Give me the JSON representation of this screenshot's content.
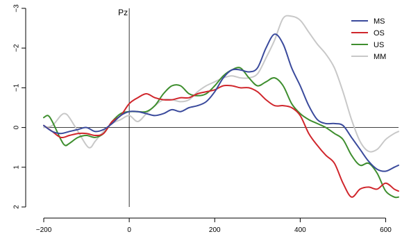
{
  "chart_data": {
    "type": "line",
    "title": "",
    "xlabel": "",
    "ylabel": "",
    "channel_label": "Pz",
    "xlim": [
      -200,
      630
    ],
    "ylim": [
      2,
      -3
    ],
    "x_ticks": [
      -200,
      0,
      200,
      400,
      600
    ],
    "y_ticks": [
      -3,
      -2,
      -1,
      0,
      1,
      2
    ],
    "reference_lines": {
      "x": 0,
      "y": 0
    },
    "legend_position": "top-right",
    "series": [
      {
        "name": "MS",
        "color": "#3a4a9c",
        "points": [
          [
            -200,
            -0.05
          ],
          [
            -180,
            0.1
          ],
          [
            -160,
            0.15
          ],
          [
            -140,
            0.1
          ],
          [
            -120,
            0.05
          ],
          [
            -100,
            0
          ],
          [
            -80,
            0.1
          ],
          [
            -60,
            0.05
          ],
          [
            -40,
            -0.1
          ],
          [
            -20,
            -0.3
          ],
          [
            0,
            -0.4
          ],
          [
            20,
            -0.4
          ],
          [
            40,
            -0.35
          ],
          [
            60,
            -0.3
          ],
          [
            80,
            -0.35
          ],
          [
            100,
            -0.45
          ],
          [
            120,
            -0.4
          ],
          [
            140,
            -0.5
          ],
          [
            160,
            -0.55
          ],
          [
            180,
            -0.65
          ],
          [
            200,
            -0.9
          ],
          [
            220,
            -1.25
          ],
          [
            240,
            -1.45
          ],
          [
            260,
            -1.45
          ],
          [
            280,
            -1.4
          ],
          [
            300,
            -1.5
          ],
          [
            320,
            -2.0
          ],
          [
            340,
            -2.35
          ],
          [
            360,
            -2.1
          ],
          [
            380,
            -1.5
          ],
          [
            400,
            -1.05
          ],
          [
            420,
            -0.55
          ],
          [
            440,
            -0.2
          ],
          [
            460,
            -0.1
          ],
          [
            480,
            -0.1
          ],
          [
            500,
            -0.05
          ],
          [
            520,
            0.25
          ],
          [
            540,
            0.55
          ],
          [
            560,
            0.85
          ],
          [
            580,
            1.05
          ],
          [
            600,
            1.1
          ],
          [
            620,
            1.0
          ],
          [
            630,
            0.95
          ]
        ]
      },
      {
        "name": "OS",
        "color": "#d0262c",
        "points": [
          [
            -200,
            -0.05
          ],
          [
            -180,
            0.1
          ],
          [
            -160,
            0.25
          ],
          [
            -140,
            0.2
          ],
          [
            -120,
            0.15
          ],
          [
            -100,
            0.15
          ],
          [
            -80,
            0.2
          ],
          [
            -60,
            0.15
          ],
          [
            -40,
            -0.15
          ],
          [
            -20,
            -0.3
          ],
          [
            0,
            -0.6
          ],
          [
            20,
            -0.75
          ],
          [
            40,
            -0.85
          ],
          [
            60,
            -0.75
          ],
          [
            80,
            -0.7
          ],
          [
            100,
            -0.7
          ],
          [
            120,
            -0.75
          ],
          [
            140,
            -0.75
          ],
          [
            160,
            -0.85
          ],
          [
            180,
            -0.9
          ],
          [
            200,
            -0.95
          ],
          [
            220,
            -1.05
          ],
          [
            240,
            -1.05
          ],
          [
            260,
            -1.0
          ],
          [
            280,
            -1.0
          ],
          [
            300,
            -0.9
          ],
          [
            320,
            -0.7
          ],
          [
            340,
            -0.55
          ],
          [
            360,
            -0.55
          ],
          [
            380,
            -0.5
          ],
          [
            400,
            -0.3
          ],
          [
            420,
            0.15
          ],
          [
            440,
            0.45
          ],
          [
            460,
            0.7
          ],
          [
            480,
            0.9
          ],
          [
            500,
            1.4
          ],
          [
            520,
            1.75
          ],
          [
            540,
            1.55
          ],
          [
            560,
            1.5
          ],
          [
            580,
            1.55
          ],
          [
            600,
            1.4
          ],
          [
            620,
            1.55
          ],
          [
            630,
            1.6
          ]
        ]
      },
      {
        "name": "US",
        "color": "#3e8e2e",
        "points": [
          [
            -200,
            -0.25
          ],
          [
            -190,
            -0.3
          ],
          [
            -180,
            -0.15
          ],
          [
            -160,
            0.3
          ],
          [
            -150,
            0.45
          ],
          [
            -140,
            0.4
          ],
          [
            -120,
            0.25
          ],
          [
            -100,
            0.2
          ],
          [
            -80,
            0.25
          ],
          [
            -60,
            0.15
          ],
          [
            -40,
            -0.15
          ],
          [
            -20,
            -0.35
          ],
          [
            0,
            -0.4
          ],
          [
            20,
            -0.4
          ],
          [
            40,
            -0.4
          ],
          [
            60,
            -0.55
          ],
          [
            80,
            -0.85
          ],
          [
            100,
            -1.05
          ],
          [
            120,
            -1.05
          ],
          [
            140,
            -0.85
          ],
          [
            160,
            -0.8
          ],
          [
            180,
            -0.85
          ],
          [
            200,
            -1.05
          ],
          [
            220,
            -1.3
          ],
          [
            240,
            -1.45
          ],
          [
            260,
            -1.5
          ],
          [
            280,
            -1.25
          ],
          [
            300,
            -1.05
          ],
          [
            320,
            -1.15
          ],
          [
            340,
            -1.25
          ],
          [
            360,
            -1.05
          ],
          [
            380,
            -0.6
          ],
          [
            400,
            -0.35
          ],
          [
            420,
            -0.2
          ],
          [
            440,
            -0.1
          ],
          [
            460,
            0.0
          ],
          [
            480,
            0.15
          ],
          [
            500,
            0.3
          ],
          [
            520,
            0.7
          ],
          [
            540,
            0.95
          ],
          [
            560,
            0.9
          ],
          [
            580,
            1.15
          ],
          [
            600,
            1.6
          ],
          [
            620,
            1.75
          ],
          [
            630,
            1.75
          ]
        ]
      },
      {
        "name": "MM",
        "color": "#c8c8c8",
        "points": [
          [
            -200,
            0.0
          ],
          [
            -180,
            -0.05
          ],
          [
            -160,
            -0.3
          ],
          [
            -150,
            -0.35
          ],
          [
            -140,
            -0.25
          ],
          [
            -120,
            0.1
          ],
          [
            -100,
            0.45
          ],
          [
            -90,
            0.5
          ],
          [
            -80,
            0.35
          ],
          [
            -60,
            0.1
          ],
          [
            -40,
            -0.1
          ],
          [
            -20,
            -0.2
          ],
          [
            0,
            -0.3
          ],
          [
            20,
            -0.15
          ],
          [
            40,
            -0.35
          ],
          [
            60,
            -0.55
          ],
          [
            80,
            -0.7
          ],
          [
            100,
            -0.7
          ],
          [
            120,
            -0.65
          ],
          [
            140,
            -0.7
          ],
          [
            160,
            -0.9
          ],
          [
            180,
            -1.05
          ],
          [
            200,
            -1.15
          ],
          [
            220,
            -1.25
          ],
          [
            240,
            -1.3
          ],
          [
            260,
            -1.25
          ],
          [
            280,
            -1.25
          ],
          [
            300,
            -1.35
          ],
          [
            320,
            -1.75
          ],
          [
            340,
            -2.2
          ],
          [
            360,
            -2.75
          ],
          [
            380,
            -2.8
          ],
          [
            400,
            -2.7
          ],
          [
            420,
            -2.4
          ],
          [
            440,
            -2.1
          ],
          [
            460,
            -1.85
          ],
          [
            480,
            -1.5
          ],
          [
            500,
            -0.9
          ],
          [
            520,
            -0.2
          ],
          [
            540,
            0.35
          ],
          [
            560,
            0.6
          ],
          [
            580,
            0.55
          ],
          [
            600,
            0.3
          ],
          [
            620,
            0.15
          ],
          [
            630,
            0.1
          ]
        ]
      }
    ]
  }
}
